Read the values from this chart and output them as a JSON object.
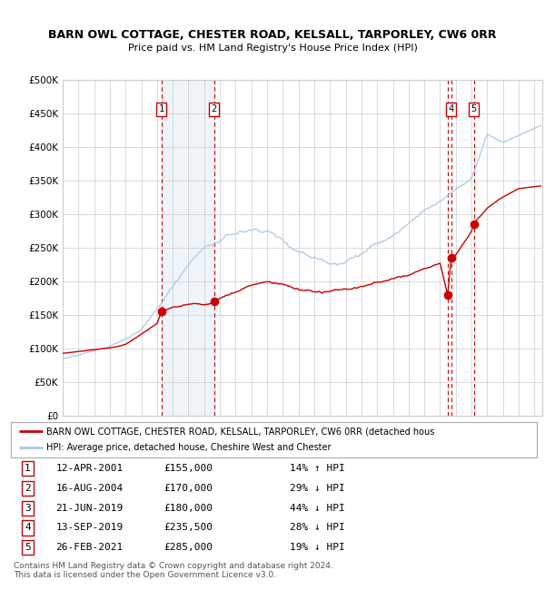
{
  "title": "BARN OWL COTTAGE, CHESTER ROAD, KELSALL, TARPORLEY, CW6 0RR",
  "subtitle": "Price paid vs. HM Land Registry's House Price Index (HPI)",
  "ylim": [
    0,
    500000
  ],
  "yticks": [
    0,
    50000,
    100000,
    150000,
    200000,
    250000,
    300000,
    350000,
    400000,
    450000,
    500000
  ],
  "ytick_labels": [
    "£0",
    "£50K",
    "£100K",
    "£150K",
    "£200K",
    "£250K",
    "£300K",
    "£350K",
    "£400K",
    "£450K",
    "£500K"
  ],
  "xlim_start": 1995.0,
  "xlim_end": 2025.5,
  "sale_dates": [
    2001.28,
    2004.62,
    2019.47,
    2019.71,
    2021.15
  ],
  "sale_prices": [
    155000,
    170000,
    180000,
    235500,
    285000
  ],
  "sale_labels": [
    "1",
    "2",
    "3",
    "4",
    "5"
  ],
  "show_top_box": [
    true,
    true,
    false,
    true,
    true
  ],
  "legend_line1": "BARN OWL COTTAGE, CHESTER ROAD, KELSALL, TARPORLEY, CW6 0RR (detached hous",
  "legend_line2": "HPI: Average price, detached house, Cheshire West and Chester",
  "table_data": [
    [
      "1",
      "12-APR-2001",
      "£155,000",
      "14% ↑ HPI"
    ],
    [
      "2",
      "16-AUG-2004",
      "£170,000",
      "29% ↓ HPI"
    ],
    [
      "3",
      "21-JUN-2019",
      "£180,000",
      "44% ↓ HPI"
    ],
    [
      "4",
      "13-SEP-2019",
      "£235,500",
      "28% ↓ HPI"
    ],
    [
      "5",
      "26-FEB-2021",
      "£285,000",
      "19% ↓ HPI"
    ]
  ],
  "footer": "Contains HM Land Registry data © Crown copyright and database right 2024.\nThis data is licensed under the Open Government Licence v3.0.",
  "hpi_color": "#abc8e2",
  "price_color": "#cc0000",
  "highlight_color": "#ddeeff",
  "vline_color": "#cc0000",
  "background_color": "#ffffff",
  "grid_color": "#cccccc",
  "hpi_base_years": [
    1995,
    1996,
    1997,
    1998,
    1999,
    2000,
    2001,
    2002,
    2003,
    2004,
    2005,
    2006,
    2007,
    2008,
    2009,
    2010,
    2011,
    2012,
    2013,
    2014,
    2015,
    2016,
    2017,
    2018,
    2019,
    2020,
    2021,
    2022,
    2023,
    2024,
    2025.4
  ],
  "hpi_base_vals": [
    85000,
    90000,
    96000,
    104000,
    115000,
    130000,
    158000,
    192000,
    228000,
    252000,
    262000,
    272000,
    277000,
    278000,
    263000,
    252000,
    246000,
    241000,
    246000,
    255000,
    266000,
    276000,
    292000,
    313000,
    322000,
    337000,
    355000,
    420000,
    408000,
    418000,
    432000
  ],
  "price_base_years": [
    1995,
    1996,
    1997,
    1998,
    1999,
    2000,
    2001.0,
    2001.28,
    2002,
    2003,
    2004.0,
    2004.62,
    2005,
    2006,
    2007,
    2008,
    2009,
    2010,
    2011,
    2012,
    2013,
    2014,
    2015,
    2016,
    2017,
    2018,
    2019.0,
    2019.47,
    2019.5,
    2019.71,
    2020,
    2021.0,
    2021.15,
    2022,
    2023,
    2024,
    2025.4
  ],
  "price_base_vals": [
    93000,
    96000,
    99000,
    102000,
    106000,
    122000,
    138000,
    155000,
    163000,
    167000,
    167000,
    170000,
    177000,
    186000,
    198000,
    202000,
    198000,
    191000,
    187000,
    184000,
    187000,
    191000,
    196000,
    200000,
    207000,
    218000,
    225000,
    180000,
    182000,
    235500,
    238000,
    272000,
    285000,
    308000,
    325000,
    338000,
    342000
  ]
}
